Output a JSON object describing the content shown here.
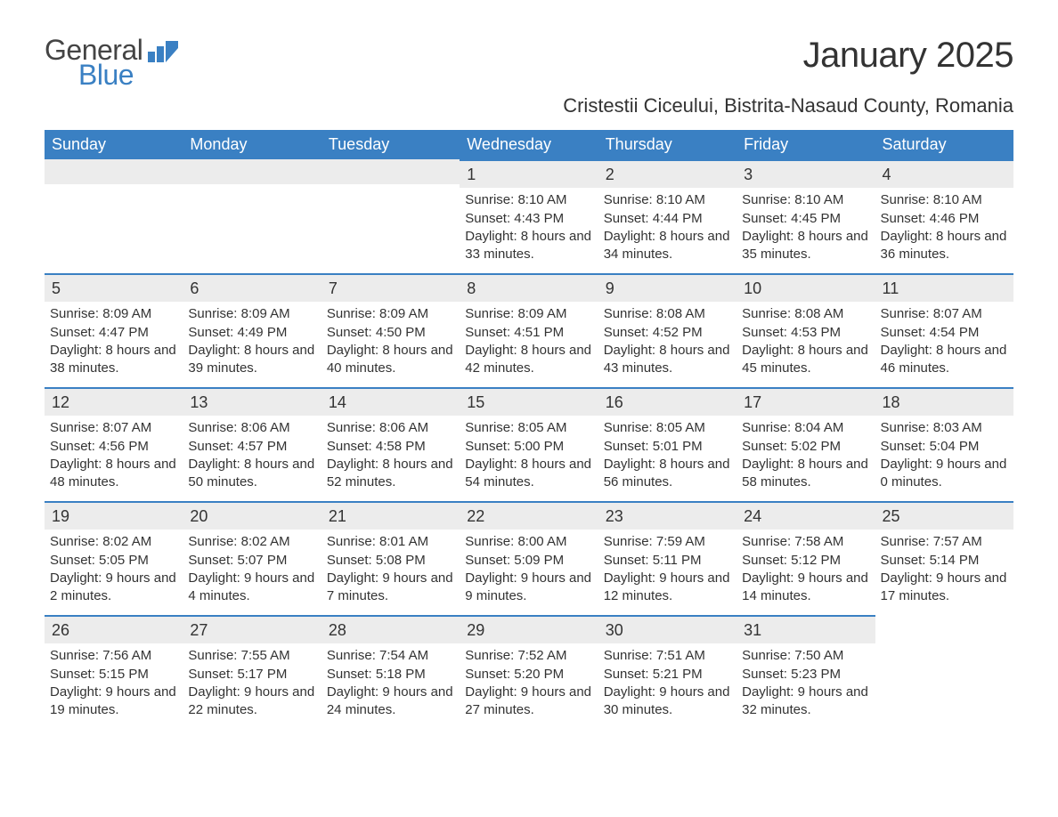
{
  "logo": {
    "text1": "General",
    "text2": "Blue",
    "color1": "#444444",
    "color2": "#3a80c3"
  },
  "title": "January 2025",
  "location": "Cristestii Ciceului, Bistrita-Nasaud County, Romania",
  "weekdays": [
    "Sunday",
    "Monday",
    "Tuesday",
    "Wednesday",
    "Thursday",
    "Friday",
    "Saturday"
  ],
  "colors": {
    "header_bg": "#3a80c3",
    "header_text": "#ffffff",
    "strip_bg": "#ececec",
    "strip_border": "#3a80c3",
    "body_text": "#333333",
    "background": "#ffffff"
  },
  "typography": {
    "title_fontsize": 40,
    "location_fontsize": 22,
    "weekday_fontsize": 18,
    "body_fontsize": 15
  },
  "label_templates": {
    "sunrise": "Sunrise: ",
    "sunset": "Sunset: ",
    "daylight_prefix": "Daylight: ",
    "daylight_join": " and ",
    "daylight_suffix": "."
  },
  "weeks": [
    [
      {
        "empty": true
      },
      {
        "empty": true
      },
      {
        "empty": true
      },
      {
        "day": "1",
        "sunrise": "8:10 AM",
        "sunset": "4:43 PM",
        "dl_h": "8 hours",
        "dl_m": "33 minutes"
      },
      {
        "day": "2",
        "sunrise": "8:10 AM",
        "sunset": "4:44 PM",
        "dl_h": "8 hours",
        "dl_m": "34 minutes"
      },
      {
        "day": "3",
        "sunrise": "8:10 AM",
        "sunset": "4:45 PM",
        "dl_h": "8 hours",
        "dl_m": "35 minutes"
      },
      {
        "day": "4",
        "sunrise": "8:10 AM",
        "sunset": "4:46 PM",
        "dl_h": "8 hours",
        "dl_m": "36 minutes"
      }
    ],
    [
      {
        "day": "5",
        "sunrise": "8:09 AM",
        "sunset": "4:47 PM",
        "dl_h": "8 hours",
        "dl_m": "38 minutes"
      },
      {
        "day": "6",
        "sunrise": "8:09 AM",
        "sunset": "4:49 PM",
        "dl_h": "8 hours",
        "dl_m": "39 minutes"
      },
      {
        "day": "7",
        "sunrise": "8:09 AM",
        "sunset": "4:50 PM",
        "dl_h": "8 hours",
        "dl_m": "40 minutes"
      },
      {
        "day": "8",
        "sunrise": "8:09 AM",
        "sunset": "4:51 PM",
        "dl_h": "8 hours",
        "dl_m": "42 minutes"
      },
      {
        "day": "9",
        "sunrise": "8:08 AM",
        "sunset": "4:52 PM",
        "dl_h": "8 hours",
        "dl_m": "43 minutes"
      },
      {
        "day": "10",
        "sunrise": "8:08 AM",
        "sunset": "4:53 PM",
        "dl_h": "8 hours",
        "dl_m": "45 minutes"
      },
      {
        "day": "11",
        "sunrise": "8:07 AM",
        "sunset": "4:54 PM",
        "dl_h": "8 hours",
        "dl_m": "46 minutes"
      }
    ],
    [
      {
        "day": "12",
        "sunrise": "8:07 AM",
        "sunset": "4:56 PM",
        "dl_h": "8 hours",
        "dl_m": "48 minutes"
      },
      {
        "day": "13",
        "sunrise": "8:06 AM",
        "sunset": "4:57 PM",
        "dl_h": "8 hours",
        "dl_m": "50 minutes"
      },
      {
        "day": "14",
        "sunrise": "8:06 AM",
        "sunset": "4:58 PM",
        "dl_h": "8 hours",
        "dl_m": "52 minutes"
      },
      {
        "day": "15",
        "sunrise": "8:05 AM",
        "sunset": "5:00 PM",
        "dl_h": "8 hours",
        "dl_m": "54 minutes"
      },
      {
        "day": "16",
        "sunrise": "8:05 AM",
        "sunset": "5:01 PM",
        "dl_h": "8 hours",
        "dl_m": "56 minutes"
      },
      {
        "day": "17",
        "sunrise": "8:04 AM",
        "sunset": "5:02 PM",
        "dl_h": "8 hours",
        "dl_m": "58 minutes"
      },
      {
        "day": "18",
        "sunrise": "8:03 AM",
        "sunset": "5:04 PM",
        "dl_h": "9 hours",
        "dl_m": "0 minutes"
      }
    ],
    [
      {
        "day": "19",
        "sunrise": "8:02 AM",
        "sunset": "5:05 PM",
        "dl_h": "9 hours",
        "dl_m": "2 minutes"
      },
      {
        "day": "20",
        "sunrise": "8:02 AM",
        "sunset": "5:07 PM",
        "dl_h": "9 hours",
        "dl_m": "4 minutes"
      },
      {
        "day": "21",
        "sunrise": "8:01 AM",
        "sunset": "5:08 PM",
        "dl_h": "9 hours",
        "dl_m": "7 minutes"
      },
      {
        "day": "22",
        "sunrise": "8:00 AM",
        "sunset": "5:09 PM",
        "dl_h": "9 hours",
        "dl_m": "9 minutes"
      },
      {
        "day": "23",
        "sunrise": "7:59 AM",
        "sunset": "5:11 PM",
        "dl_h": "9 hours",
        "dl_m": "12 minutes"
      },
      {
        "day": "24",
        "sunrise": "7:58 AM",
        "sunset": "5:12 PM",
        "dl_h": "9 hours",
        "dl_m": "14 minutes"
      },
      {
        "day": "25",
        "sunrise": "7:57 AM",
        "sunset": "5:14 PM",
        "dl_h": "9 hours",
        "dl_m": "17 minutes"
      }
    ],
    [
      {
        "day": "26",
        "sunrise": "7:56 AM",
        "sunset": "5:15 PM",
        "dl_h": "9 hours",
        "dl_m": "19 minutes"
      },
      {
        "day": "27",
        "sunrise": "7:55 AM",
        "sunset": "5:17 PM",
        "dl_h": "9 hours",
        "dl_m": "22 minutes"
      },
      {
        "day": "28",
        "sunrise": "7:54 AM",
        "sunset": "5:18 PM",
        "dl_h": "9 hours",
        "dl_m": "24 minutes"
      },
      {
        "day": "29",
        "sunrise": "7:52 AM",
        "sunset": "5:20 PM",
        "dl_h": "9 hours",
        "dl_m": "27 minutes"
      },
      {
        "day": "30",
        "sunrise": "7:51 AM",
        "sunset": "5:21 PM",
        "dl_h": "9 hours",
        "dl_m": "30 minutes"
      },
      {
        "day": "31",
        "sunrise": "7:50 AM",
        "sunset": "5:23 PM",
        "dl_h": "9 hours",
        "dl_m": "32 minutes"
      },
      {
        "empty": true,
        "no_strip": true
      }
    ]
  ]
}
